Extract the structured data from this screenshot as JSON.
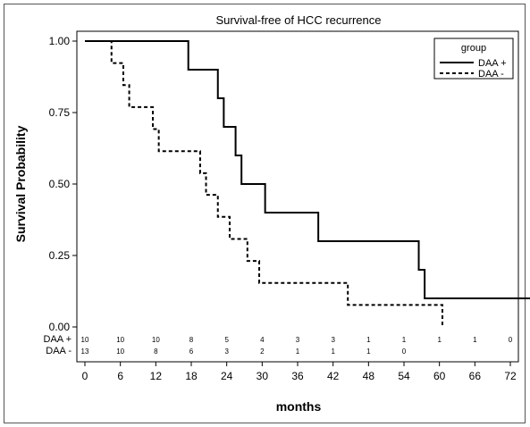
{
  "chart_data": {
    "type": "line",
    "subtype": "kaplan-meier-step",
    "title": "Survival-free of HCC recurrence",
    "xlabel": "months",
    "ylabel": "Survival Probability",
    "xlim": [
      0,
      72
    ],
    "ylim": [
      0,
      1
    ],
    "x_ticks": [
      0,
      6,
      12,
      18,
      24,
      30,
      36,
      42,
      48,
      54,
      60,
      66,
      72
    ],
    "y_ticks": [
      0.0,
      0.25,
      0.5,
      0.75,
      1.0
    ],
    "y_tick_labels": [
      "0.00",
      "0.25",
      "0.50",
      "0.75",
      "1.00"
    ],
    "grid": false,
    "legend": {
      "title": "group",
      "position": "top-right"
    },
    "series": [
      {
        "name": "DAA +",
        "line_style": "solid",
        "color": "#000000",
        "steps": [
          {
            "x": 0,
            "y": 1.0
          },
          {
            "x": 17.5,
            "y": 0.9
          },
          {
            "x": 22.5,
            "y": 0.8
          },
          {
            "x": 23.5,
            "y": 0.7
          },
          {
            "x": 25.5,
            "y": 0.6
          },
          {
            "x": 26.5,
            "y": 0.5
          },
          {
            "x": 30.5,
            "y": 0.4
          },
          {
            "x": 39.5,
            "y": 0.3
          },
          {
            "x": 56.5,
            "y": 0.2
          },
          {
            "x": 57.5,
            "y": 0.1
          }
        ],
        "end_x": 84.5,
        "end_y": 0.0
      },
      {
        "name": "DAA -",
        "line_style": "dashed",
        "color": "#000000",
        "steps": [
          {
            "x": 0,
            "y": 1.0
          },
          {
            "x": 4.5,
            "y": 0.923
          },
          {
            "x": 6.5,
            "y": 0.846
          },
          {
            "x": 7.5,
            "y": 0.769
          },
          {
            "x": 11.5,
            "y": 0.692
          },
          {
            "x": 12.5,
            "y": 0.615
          },
          {
            "x": 19.5,
            "y": 0.538
          },
          {
            "x": 20.5,
            "y": 0.462
          },
          {
            "x": 22.5,
            "y": 0.385
          },
          {
            "x": 24.5,
            "y": 0.308
          },
          {
            "x": 27.5,
            "y": 0.231
          },
          {
            "x": 29.5,
            "y": 0.154
          },
          {
            "x": 44.5,
            "y": 0.077
          }
        ],
        "end_x": 60.5,
        "end_y": 0.0
      }
    ],
    "risk_table": {
      "x": [
        0,
        6,
        12,
        18,
        24,
        30,
        36,
        42,
        48,
        54,
        60,
        66,
        72
      ],
      "rows": [
        {
          "label": "DAA +",
          "values": [
            "10",
            "10",
            "10",
            "8",
            "5",
            "4",
            "3",
            "3",
            "1",
            "1",
            "1",
            "1",
            "0"
          ]
        },
        {
          "label": "DAA -",
          "values": [
            "13",
            "10",
            "8",
            "6",
            "3",
            "2",
            "1",
            "1",
            "1",
            "0",
            "",
            "",
            ""
          ]
        }
      ]
    }
  }
}
